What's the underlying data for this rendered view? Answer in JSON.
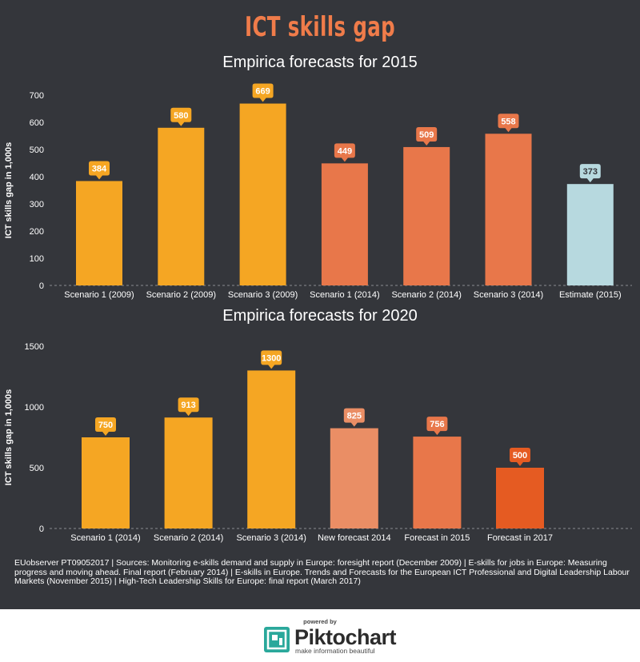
{
  "title": "ICT skills gap",
  "chart_data": [
    {
      "type": "bar",
      "title": "Empirica forecasts for 2015",
      "ylabel": "ICT skills gap in 1,000s",
      "ylim": [
        0,
        700
      ],
      "yticks": [
        0,
        100,
        200,
        300,
        400,
        500,
        600,
        700
      ],
      "categories": [
        "Scenario 1 (2009)",
        "Scenario 2 (2009)",
        "Scenario 3 (2009)",
        "Scenario 1 (2014)",
        "Scenario 2 (2014)",
        "Scenario 3 (2014)",
        "Estimate (2015)"
      ],
      "values": [
        384,
        580,
        669,
        449,
        509,
        558,
        373
      ],
      "colors": [
        "#f5a623",
        "#f5a623",
        "#f5a623",
        "#e8774a",
        "#e8774a",
        "#e8774a",
        "#b7d9df"
      ],
      "label_text_colors": [
        "#ffffff",
        "#ffffff",
        "#ffffff",
        "#ffffff",
        "#ffffff",
        "#ffffff",
        "#34363b"
      ]
    },
    {
      "type": "bar",
      "title": "Empirica forecasts for 2020",
      "ylabel": "ICT skills gap in 1,000s",
      "ylim": [
        0,
        1500
      ],
      "yticks": [
        0,
        500,
        1000,
        1500
      ],
      "categories": [
        "Scenario 1 (2014)",
        "Scenario 2 (2014)",
        "Scenario 3 (2014)",
        "New forecast 2014",
        "Forecast in 2015",
        "Forecast in 2017"
      ],
      "values": [
        750,
        913,
        1300,
        825,
        756,
        500
      ],
      "colors": [
        "#f5a623",
        "#f5a623",
        "#f5a623",
        "#ea8e65",
        "#e8774a",
        "#e55b22"
      ],
      "label_text_colors": [
        "#ffffff",
        "#ffffff",
        "#ffffff",
        "#ffffff",
        "#ffffff",
        "#ffffff"
      ]
    }
  ],
  "footer": {
    "sources": "EUobserver PT09052017 | Sources: Monitoring e-skills demand and supply in Europe: foresight report (December 2009) | E-skills for jobs in Europe: Measuring progress and moving ahead. Final report (February 2014) | E-skills in Europe. Trends and Forecasts for the European ICT Professional and Digital Leadership Labour Markets (November 2015) | High-Tech Leadership Skills for Europe: final report (March 2017)"
  },
  "branding": {
    "powered_by": "powered by",
    "name": "Piktochart",
    "tagline": "make information beautiful",
    "logo_color": "#2aa89b"
  }
}
